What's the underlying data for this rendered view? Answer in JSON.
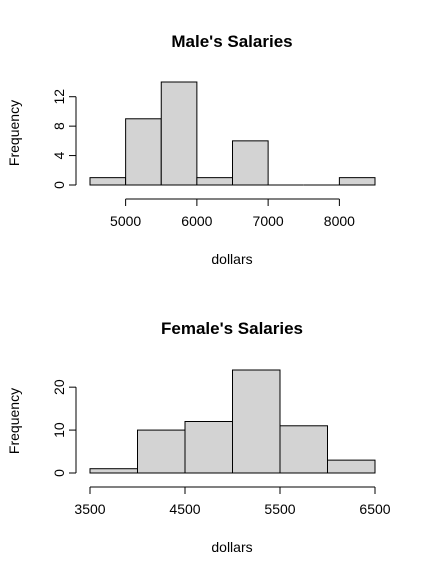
{
  "chart_data": [
    {
      "type": "bar",
      "title": "Male's Salaries",
      "xlabel": "dollars",
      "ylabel": "Frequency",
      "bins": [
        {
          "from": 4500,
          "to": 5000,
          "value": 1
        },
        {
          "from": 5000,
          "to": 5500,
          "value": 9
        },
        {
          "from": 5500,
          "to": 6000,
          "value": 14
        },
        {
          "from": 6000,
          "to": 6500,
          "value": 1
        },
        {
          "from": 6500,
          "to": 7000,
          "value": 6
        },
        {
          "from": 7000,
          "to": 7500,
          "value": 0
        },
        {
          "from": 7500,
          "to": 8000,
          "value": 0
        },
        {
          "from": 8000,
          "to": 8500,
          "value": 1
        }
      ],
      "xticks": [
        "5000",
        "6000",
        "7000",
        "8000"
      ],
      "yticks": [
        "0",
        "4",
        "8",
        "12"
      ],
      "xlim": [
        4500,
        8500
      ],
      "ylim": [
        0,
        14
      ],
      "grid": false
    },
    {
      "type": "bar",
      "title": "Female's Salaries",
      "xlabel": "dollars",
      "ylabel": "Frequency",
      "bins": [
        {
          "from": 3500,
          "to": 4000,
          "value": 1
        },
        {
          "from": 4000,
          "to": 4500,
          "value": 10
        },
        {
          "from": 4500,
          "to": 5000,
          "value": 12
        },
        {
          "from": 5000,
          "to": 5500,
          "value": 24
        },
        {
          "from": 5500,
          "to": 6000,
          "value": 11
        },
        {
          "from": 6000,
          "to": 6500,
          "value": 3
        }
      ],
      "xticks": [
        "3500",
        "4500",
        "5500",
        "6500"
      ],
      "yticks": [
        "0",
        "10",
        "20"
      ],
      "xlim": [
        3500,
        6500
      ],
      "ylim": [
        0,
        24
      ],
      "grid": false
    }
  ]
}
